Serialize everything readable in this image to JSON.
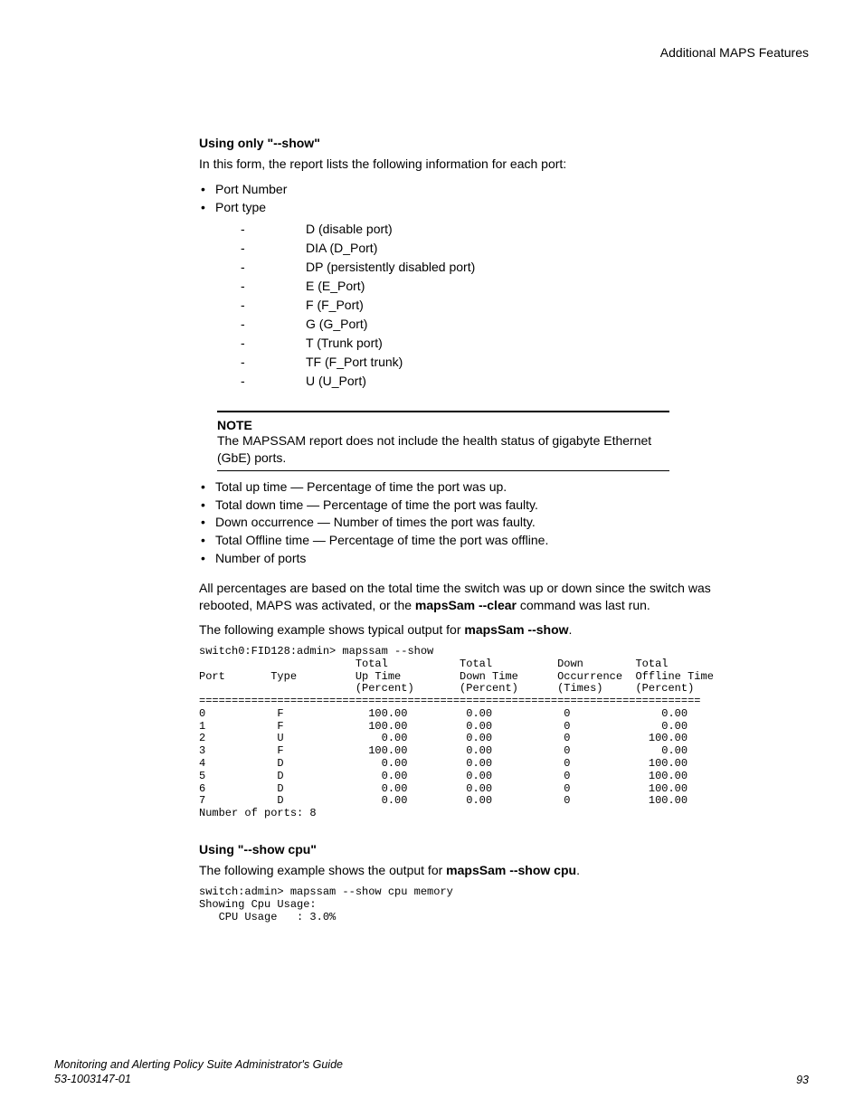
{
  "header": {
    "right": "Additional MAPS Features"
  },
  "section1": {
    "heading": "Using only \"--show\"",
    "intro": "In this form, the report lists the following information for each port:",
    "bullets": [
      "Port Number",
      "Port type"
    ],
    "port_types": [
      "D (disable port)",
      "DIA (D_Port)",
      "DP (persistently disabled port)",
      "E (E_Port)",
      "F (F_Port)",
      "G (G_Port)",
      "T (Trunk port)",
      "TF (F_Port trunk)",
      "U (U_Port)"
    ]
  },
  "note": {
    "label": "NOTE",
    "text": "The MAPSSAM report does not include the health status of gigabyte Ethernet (GbE) ports."
  },
  "bullets2": [
    "Total up time — Percentage of time the port was up.",
    "Total down time — Percentage of time the port was faulty.",
    "Down occurrence — Number of times the port was faulty.",
    "Total Offline time — Percentage of time the port was offline.",
    "Number of ports"
  ],
  "para_percent_pre": "All percentages are based on the total time the switch was up or down since the switch was rebooted, MAPS was activated, or the ",
  "para_percent_bold": "mapsSam --clear",
  "para_percent_post": " command was last run.",
  "para_example1_pre": "The following example shows typical output for ",
  "para_example1_bold": "mapsSam --show",
  "para_example1_post": ".",
  "code1": "switch0:FID128:admin> mapssam --show\n                        Total           Total          Down        Total\nPort       Type         Up Time         Down Time      Occurrence  Offline Time\n                        (Percent)       (Percent)      (Times)     (Percent)\n=============================================================================\n0           F             100.00         0.00           0              0.00\n1           F             100.00         0.00           0              0.00\n2           U               0.00         0.00           0            100.00\n3           F             100.00         0.00           0              0.00\n4           D               0.00         0.00           0            100.00\n5           D               0.00         0.00           0            100.00\n6           D               0.00         0.00           0            100.00\n7           D               0.00         0.00           0            100.00\nNumber of ports: 8",
  "section2": {
    "heading": "Using \"--show cpu\"",
    "intro_pre": "The following example shows the output for ",
    "intro_bold": "mapsSam --show cpu",
    "intro_post": "."
  },
  "code2": "switch:admin> mapssam --show cpu memory\nShowing Cpu Usage:\n   CPU Usage   : 3.0%",
  "footer": {
    "title": "Monitoring and Alerting Policy Suite Administrator's Guide",
    "docnum": "53-1003147-01",
    "page": "93"
  }
}
